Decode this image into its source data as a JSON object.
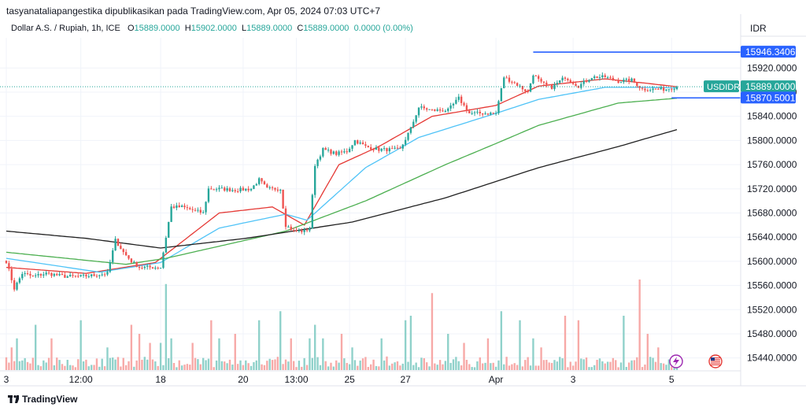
{
  "header": {
    "attribution": "tasyanataliapangestika dipublikasikan pada TradingView.com, Apr 05, 2024 07:03 UTC+7"
  },
  "legend": {
    "symbol": "Dollar A.S. / Rupiah, 1h, ICE",
    "o_label": "O",
    "o_value": "15889.0000",
    "h_label": "H",
    "h_value": "15902.0000",
    "l_label": "L",
    "l_value": "15889.0000",
    "c_label": "C",
    "c_value": "15889.0000",
    "change": "0.0000 (0.00%)"
  },
  "footer": {
    "brand": "TradingView"
  },
  "colors": {
    "up": "#26a69a",
    "down": "#ef5350",
    "up_vol": "#8fd1ca",
    "down_vol": "#f7a9a7",
    "ema_fast": "#e53935",
    "ema_mid": "#4fc3f7",
    "ema_slow": "#4caf50",
    "ema_long": "#212121",
    "hline": "#2962ff",
    "current_line": "#26a69a"
  },
  "chart_data": {
    "type": "candlestick",
    "axis_currency": "IDR",
    "ylim": [
      15420,
      15970
    ],
    "y_ticks": [
      "15920.0000",
      "15880.0000",
      "15840.0000",
      "15800.0000",
      "15760.0000",
      "15720.0000",
      "15680.0000",
      "15640.0000",
      "15600.0000",
      "15560.0000",
      "15520.0000",
      "15480.0000",
      "15440.0000"
    ],
    "y_tick_values": [
      15920,
      15880,
      15840,
      15800,
      15760,
      15720,
      15680,
      15640,
      15600,
      15560,
      15520,
      15480,
      15440
    ],
    "x_ticks": [
      "3",
      "12:00",
      "18",
      "20",
      "13:00",
      "25",
      "27",
      "Apr",
      "3",
      "5"
    ],
    "x_tick_index": [
      0,
      28,
      58,
      89,
      109,
      129,
      150,
      184,
      213,
      250
    ],
    "bar_count": 253,
    "price_labels": [
      {
        "name": "upper-level",
        "label": "15946.3406",
        "value": 15946.34,
        "color": "#2962ff"
      },
      {
        "name": "current-price",
        "label": "15889.0000",
        "symbol": "USDIDR",
        "value": 15889,
        "color": "#26a69a"
      },
      {
        "name": "lower-level",
        "label": "15870.5001",
        "value": 15870.5,
        "color": "#2962ff"
      }
    ],
    "horizontal_lines": [
      {
        "value": 15946.34,
        "from_index": 198
      },
      {
        "value": 15870.5,
        "from_index": 250
      }
    ],
    "close_anchors": [
      [
        0,
        15600
      ],
      [
        3,
        15555
      ],
      [
        6,
        15580
      ],
      [
        10,
        15575
      ],
      [
        15,
        15580
      ],
      [
        22,
        15575
      ],
      [
        28,
        15575
      ],
      [
        33,
        15577
      ],
      [
        38,
        15580
      ],
      [
        41,
        15635
      ],
      [
        44,
        15615
      ],
      [
        47,
        15600
      ],
      [
        50,
        15590
      ],
      [
        55,
        15590
      ],
      [
        58,
        15590
      ],
      [
        60,
        15640
      ],
      [
        62,
        15690
      ],
      [
        66,
        15690
      ],
      [
        70,
        15685
      ],
      [
        74,
        15680
      ],
      [
        76,
        15720
      ],
      [
        80,
        15720
      ],
      [
        86,
        15718
      ],
      [
        92,
        15720
      ],
      [
        95,
        15735
      ],
      [
        98,
        15720
      ],
      [
        103,
        15720
      ],
      [
        105,
        15660
      ],
      [
        108,
        15650
      ],
      [
        112,
        15650
      ],
      [
        114,
        15655
      ],
      [
        116,
        15760
      ],
      [
        119,
        15785
      ],
      [
        124,
        15778
      ],
      [
        128,
        15782
      ],
      [
        131,
        15800
      ],
      [
        135,
        15790
      ],
      [
        140,
        15785
      ],
      [
        148,
        15785
      ],
      [
        152,
        15820
      ],
      [
        155,
        15855
      ],
      [
        160,
        15850
      ],
      [
        166,
        15850
      ],
      [
        170,
        15870
      ],
      [
        174,
        15845
      ],
      [
        180,
        15845
      ],
      [
        184,
        15845
      ],
      [
        187,
        15905
      ],
      [
        191,
        15895
      ],
      [
        196,
        15880
      ],
      [
        198,
        15910
      ],
      [
        201,
        15895
      ],
      [
        205,
        15888
      ],
      [
        210,
        15905
      ],
      [
        215,
        15890
      ],
      [
        220,
        15905
      ],
      [
        225,
        15905
      ],
      [
        230,
        15898
      ],
      [
        235,
        15900
      ],
      [
        239,
        15885
      ],
      [
        244,
        15885
      ],
      [
        248,
        15885
      ],
      [
        252,
        15889
      ]
    ],
    "moving_averages": [
      {
        "name": "ema-fast",
        "color": "#e53935",
        "anchors": [
          [
            0,
            15590
          ],
          [
            30,
            15580
          ],
          [
            56,
            15598
          ],
          [
            80,
            15680
          ],
          [
            100,
            15690
          ],
          [
            112,
            15660
          ],
          [
            125,
            15760
          ],
          [
            140,
            15790
          ],
          [
            160,
            15840
          ],
          [
            184,
            15858
          ],
          [
            200,
            15890
          ],
          [
            225,
            15902
          ],
          [
            240,
            15895
          ],
          [
            252,
            15889
          ]
        ]
      },
      {
        "name": "ema-mid",
        "color": "#4fc3f7",
        "anchors": [
          [
            0,
            15605
          ],
          [
            35,
            15582
          ],
          [
            58,
            15598
          ],
          [
            80,
            15655
          ],
          [
            105,
            15678
          ],
          [
            113,
            15668
          ],
          [
            135,
            15755
          ],
          [
            155,
            15805
          ],
          [
            184,
            15845
          ],
          [
            200,
            15868
          ],
          [
            225,
            15888
          ],
          [
            240,
            15888
          ],
          [
            252,
            15887
          ]
        ]
      },
      {
        "name": "ema-slow",
        "color": "#4caf50",
        "anchors": [
          [
            0,
            15615
          ],
          [
            45,
            15595
          ],
          [
            60,
            15605
          ],
          [
            105,
            15650
          ],
          [
            135,
            15700
          ],
          [
            165,
            15760
          ],
          [
            184,
            15795
          ],
          [
            200,
            15825
          ],
          [
            230,
            15862
          ],
          [
            252,
            15870
          ]
        ]
      },
      {
        "name": "ema-long",
        "color": "#212121",
        "anchors": [
          [
            0,
            15650
          ],
          [
            30,
            15638
          ],
          [
            58,
            15622
          ],
          [
            90,
            15638
          ],
          [
            130,
            15665
          ],
          [
            165,
            15705
          ],
          [
            200,
            15755
          ],
          [
            230,
            15790
          ],
          [
            252,
            15818
          ]
        ]
      }
    ],
    "volume_spikes": [
      [
        2,
        0.25
      ],
      [
        4,
        0.35
      ],
      [
        11,
        0.5
      ],
      [
        17,
        0.35
      ],
      [
        28,
        0.55
      ],
      [
        38,
        0.25
      ],
      [
        47,
        0.5
      ],
      [
        50,
        0.4
      ],
      [
        54,
        0.3
      ],
      [
        58,
        0.3
      ],
      [
        60,
        0.95
      ],
      [
        62,
        0.35
      ],
      [
        70,
        0.3
      ],
      [
        77,
        0.55
      ],
      [
        80,
        0.35
      ],
      [
        86,
        0.4
      ],
      [
        95,
        0.55
      ],
      [
        103,
        0.65
      ],
      [
        107,
        0.35
      ],
      [
        114,
        0.35
      ],
      [
        116,
        0.5
      ],
      [
        119,
        0.35
      ],
      [
        126,
        0.4
      ],
      [
        130,
        0.25
      ],
      [
        141,
        0.35
      ],
      [
        150,
        0.55
      ],
      [
        152,
        0.6
      ],
      [
        160,
        0.85
      ],
      [
        166,
        0.4
      ],
      [
        172,
        0.3
      ],
      [
        181,
        0.35
      ],
      [
        186,
        0.65
      ],
      [
        193,
        0.55
      ],
      [
        198,
        0.35
      ],
      [
        201,
        0.25
      ],
      [
        210,
        0.6
      ],
      [
        215,
        0.55
      ],
      [
        232,
        0.6
      ],
      [
        238,
        1.0
      ],
      [
        241,
        0.4
      ],
      [
        245,
        0.25
      ]
    ],
    "icons": [
      {
        "name": "lightning-event-icon"
      },
      {
        "name": "us-flag-event-icon"
      }
    ]
  }
}
